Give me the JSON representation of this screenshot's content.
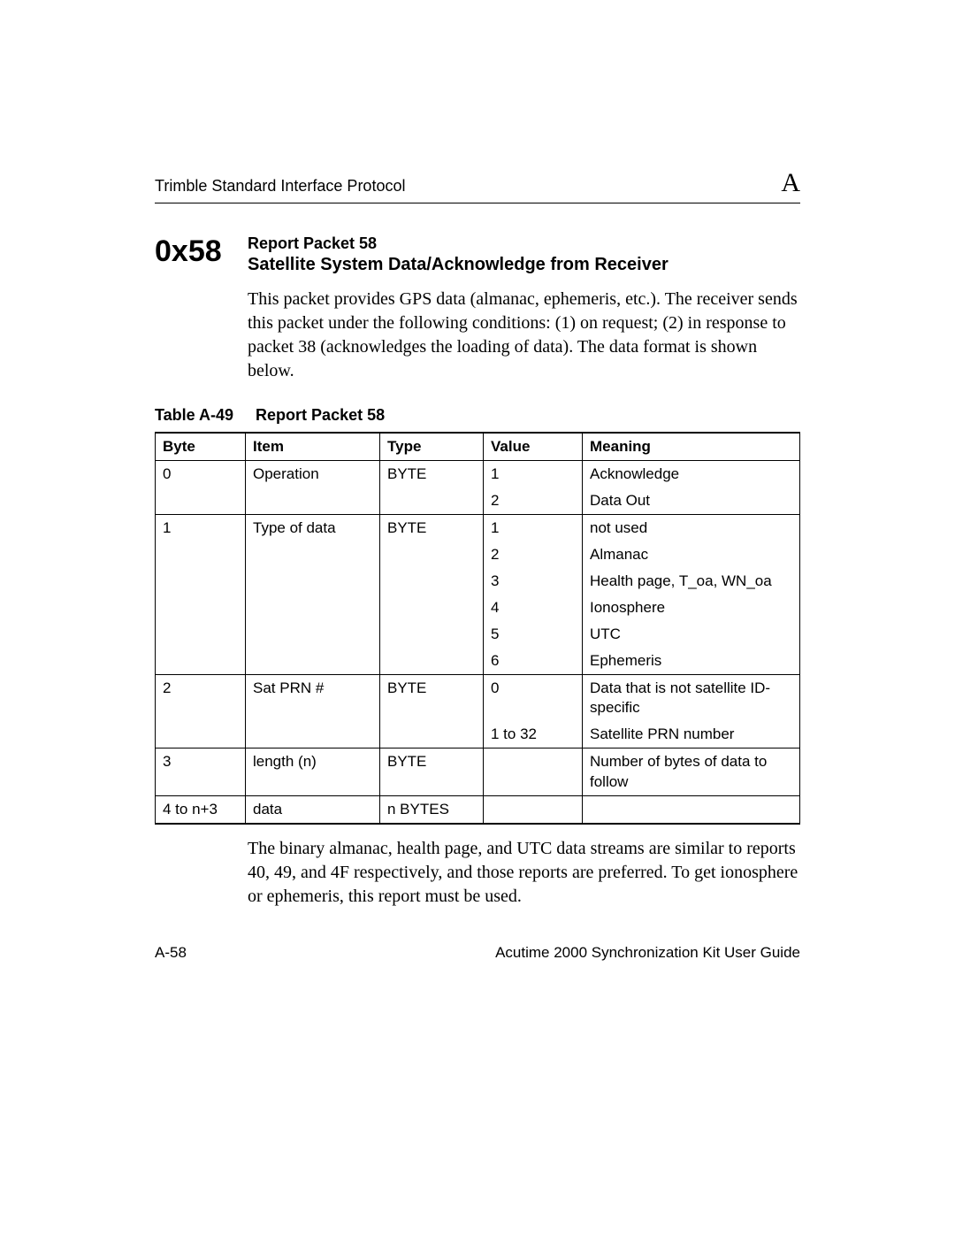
{
  "header": {
    "left": "Trimble Standard Interface Protocol",
    "right": "A"
  },
  "section": {
    "hex": "0x58",
    "subtitle": "Report Packet 58",
    "title": "Satellite System Data/Acknowledge from Receiver",
    "intro": "This packet provides GPS data (almanac, ephemeris, etc.). The receiver sends this packet under the following conditions: (1) on request; (2) in response to packet 38 (acknowledges the loading of data). The data format is shown below.",
    "outro": "The binary almanac, health page, and UTC data streams are similar to reports 40, 49, and 4F respectively, and those reports are preferred. To get ionosphere or ephemeris, this report must be used."
  },
  "table": {
    "caption_label": "Table A-49",
    "caption_title": "Report Packet 58",
    "columns": [
      "Byte",
      "Item",
      "Type",
      "Value",
      "Meaning"
    ],
    "rows": [
      {
        "byte": "0",
        "item": "Operation",
        "type": "BYTE",
        "value": "1",
        "meaning": "Acknowledge",
        "group_end": false
      },
      {
        "byte": "",
        "item": "",
        "type": "",
        "value": "2",
        "meaning": "Data Out",
        "group_end": true
      },
      {
        "byte": "1",
        "item": "Type of data",
        "type": "BYTE",
        "value": "1",
        "meaning": "not used",
        "group_end": false
      },
      {
        "byte": "",
        "item": "",
        "type": "",
        "value": "2",
        "meaning": "Almanac",
        "group_end": false
      },
      {
        "byte": "",
        "item": "",
        "type": "",
        "value": "3",
        "meaning": "Health page, T_oa, WN_oa",
        "group_end": false
      },
      {
        "byte": "",
        "item": "",
        "type": "",
        "value": "4",
        "meaning": "Ionosphere",
        "group_end": false
      },
      {
        "byte": "",
        "item": "",
        "type": "",
        "value": "5",
        "meaning": "UTC",
        "group_end": false
      },
      {
        "byte": "",
        "item": "",
        "type": "",
        "value": "6",
        "meaning": "Ephemeris",
        "group_end": true
      },
      {
        "byte": "2",
        "item": "Sat PRN #",
        "type": "BYTE",
        "value": "0",
        "meaning": "Data that is not satellite ID-specific",
        "group_end": false
      },
      {
        "byte": "",
        "item": "",
        "type": "",
        "value": "1 to 32",
        "meaning": "Satellite PRN number",
        "group_end": true
      },
      {
        "byte": "3",
        "item": "length (n)",
        "type": "BYTE",
        "value": "",
        "meaning": "Number of bytes of data to follow",
        "group_end": true
      },
      {
        "byte": "4 to n+3",
        "item": "data",
        "type": "n BYTES",
        "value": "",
        "meaning": "",
        "group_end": true,
        "last": true
      }
    ]
  },
  "footer": {
    "left": "A-58",
    "right": "Acutime 2000 Synchronization Kit User Guide"
  }
}
